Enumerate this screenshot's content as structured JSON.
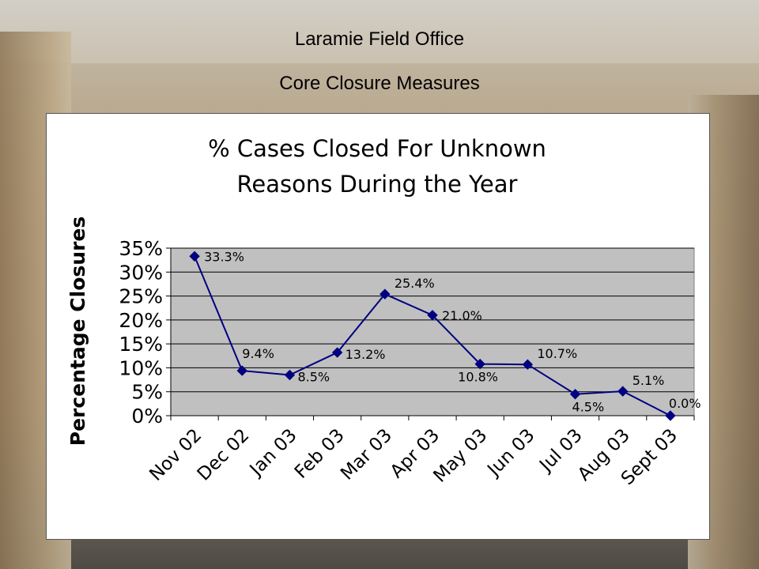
{
  "header": {
    "title": "Laramie Field Office",
    "subtitle": "Core Closure Measures"
  },
  "chart_data": {
    "type": "line",
    "title": "% Cases Closed For Unknown Reasons During the Year",
    "title_lines": [
      "% Cases Closed For Unknown",
      "Reasons During the Year"
    ],
    "ylabel": "Percentage Closures",
    "xlabel": "",
    "categories": [
      "Nov 02",
      "Dec 02",
      "Jan 03",
      "Feb 03",
      "Mar 03",
      "Apr 03",
      "May 03",
      "Jun 03",
      "Jul 03",
      "Aug 03",
      "Sept 03"
    ],
    "values": [
      33.3,
      9.4,
      8.5,
      13.2,
      25.4,
      21.0,
      10.8,
      10.7,
      4.5,
      5.1,
      0.0
    ],
    "data_labels": [
      "33.3%",
      "9.4%",
      "8.5%",
      "13.2%",
      "25.4%",
      "21.0%",
      "10.8%",
      "10.7%",
      "4.5%",
      "5.1%",
      "0.0%"
    ],
    "ylim": [
      0,
      35
    ],
    "yticks": [
      0,
      5,
      10,
      15,
      20,
      25,
      30,
      35
    ],
    "ytick_labels": [
      "0%",
      "5%",
      "10%",
      "15%",
      "20%",
      "25%",
      "30%",
      "35%"
    ],
    "grid": true,
    "legend": "none",
    "colors": {
      "line": "#000080",
      "plot_background": "#c0c0c0",
      "gridline": "#000000"
    }
  }
}
